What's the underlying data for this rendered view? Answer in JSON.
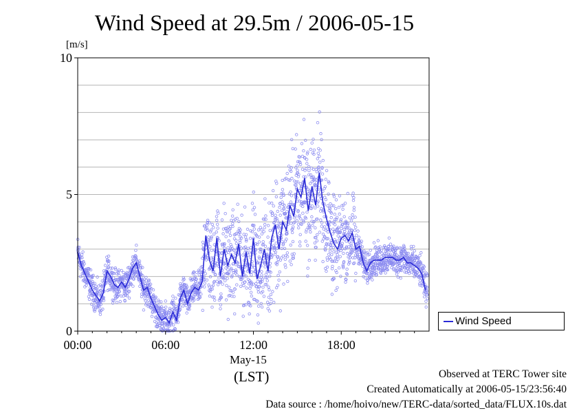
{
  "title": "Wind Speed at 29.5m / 2006-05-15",
  "unit_label": "[m/s]",
  "legend": {
    "label": "Wind Speed",
    "color": "#2a2ad6"
  },
  "axis": {
    "date_label": "May-15",
    "timezone_label": "(LST)"
  },
  "footer": {
    "site": "Observed at TERC Tower site",
    "created": "Created Automatically at 2006-05-15/23:56:40",
    "source": "Data source : /home/hoivo/new/TERC-data/sorted_data/FLUX.10s.dat"
  },
  "chart_data": {
    "type": "line",
    "title": "Wind Speed at 29.5m / 2006-05-15",
    "ylabel": "[m/s]",
    "xlabel": "(LST)",
    "xlim": [
      0,
      24
    ],
    "ylim": [
      0,
      10
    ],
    "x_ticks": [
      "00:00",
      "06:00",
      "12:00",
      "18:00"
    ],
    "x_tick_hours": [
      0,
      6,
      12,
      18
    ],
    "y_ticks": [
      0,
      5,
      10
    ],
    "grid": "horizontal every 1 m/s",
    "legend_position": "right",
    "series": [
      {
        "name": "Wind Speed",
        "color": "#2a2ad6",
        "style": "line (running mean) with scattered 10 s samples",
        "hours": [
          0.0,
          0.25,
          0.5,
          0.75,
          1.0,
          1.25,
          1.5,
          1.75,
          2.0,
          2.25,
          2.5,
          2.75,
          3.0,
          3.25,
          3.5,
          3.75,
          4.0,
          4.25,
          4.5,
          4.75,
          5.0,
          5.25,
          5.5,
          5.75,
          6.0,
          6.25,
          6.5,
          6.75,
          7.0,
          7.25,
          7.5,
          7.75,
          8.0,
          8.25,
          8.5,
          8.75,
          9.0,
          9.25,
          9.5,
          9.75,
          10.0,
          10.25,
          10.5,
          10.75,
          11.0,
          11.25,
          11.5,
          11.75,
          12.0,
          12.25,
          12.5,
          12.75,
          13.0,
          13.25,
          13.5,
          13.75,
          14.0,
          14.25,
          14.5,
          14.75,
          15.0,
          15.25,
          15.5,
          15.75,
          16.0,
          16.25,
          16.5,
          16.75,
          17.0,
          17.25,
          17.5,
          17.75,
          18.0,
          18.25,
          18.5,
          18.75,
          19.0,
          19.25,
          19.5,
          19.75,
          20.0,
          20.25,
          20.5,
          20.75,
          21.0,
          21.25,
          21.5,
          21.75,
          22.0,
          22.25,
          22.5,
          22.75,
          23.0,
          23.25,
          23.5,
          23.75
        ],
        "values": [
          2.9,
          2.4,
          2.1,
          1.8,
          1.5,
          1.3,
          1.1,
          1.4,
          2.2,
          2.0,
          1.7,
          1.6,
          1.8,
          1.6,
          1.9,
          2.3,
          2.5,
          2.0,
          1.5,
          1.6,
          1.2,
          0.9,
          0.6,
          0.4,
          0.5,
          0.3,
          0.7,
          0.4,
          1.2,
          1.5,
          1.0,
          1.4,
          1.6,
          1.5,
          1.8,
          3.5,
          2.6,
          2.2,
          3.4,
          2.0,
          3.0,
          2.4,
          2.8,
          2.5,
          3.2,
          2.0,
          2.9,
          2.1,
          3.4,
          1.9,
          2.4,
          3.0,
          2.2,
          3.4,
          3.9,
          3.0,
          4.0,
          3.7,
          4.6,
          4.2,
          5.2,
          4.9,
          5.6,
          4.4,
          5.3,
          4.6,
          5.8,
          4.7,
          4.1,
          3.6,
          3.2,
          3.0,
          3.4,
          3.5,
          3.3,
          3.6,
          3.0,
          3.1,
          2.5,
          2.2,
          2.5,
          2.6,
          2.6,
          2.6,
          2.7,
          2.7,
          2.7,
          2.6,
          2.6,
          2.7,
          2.5,
          2.5,
          2.4,
          2.3,
          2.1,
          1.5
        ]
      }
    ]
  }
}
